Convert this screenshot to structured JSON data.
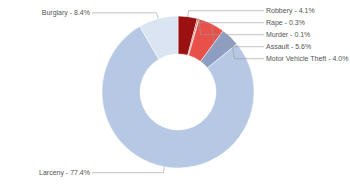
{
  "chart_data": {
    "type": "donut",
    "values": [
      4.1,
      0.3,
      0.1,
      5.6,
      4.0,
      77.4,
      8.4
    ],
    "value_labels": [
      "Robbery - 4.1%",
      "Rape - 0.3%",
      "Murder - 0.1%",
      "Assault - 5.6%",
      "Motor Vehicle Theft - 4.0%",
      "Larceny - 77.4%",
      "Burglary - 8.4%"
    ],
    "colors": [
      "#9b1111",
      "#d63a33",
      "#e0463f",
      "#e8504a",
      "#8e9ec2",
      "#b7c8e4",
      "#dbe4f2"
    ],
    "data_labels": true
  }
}
